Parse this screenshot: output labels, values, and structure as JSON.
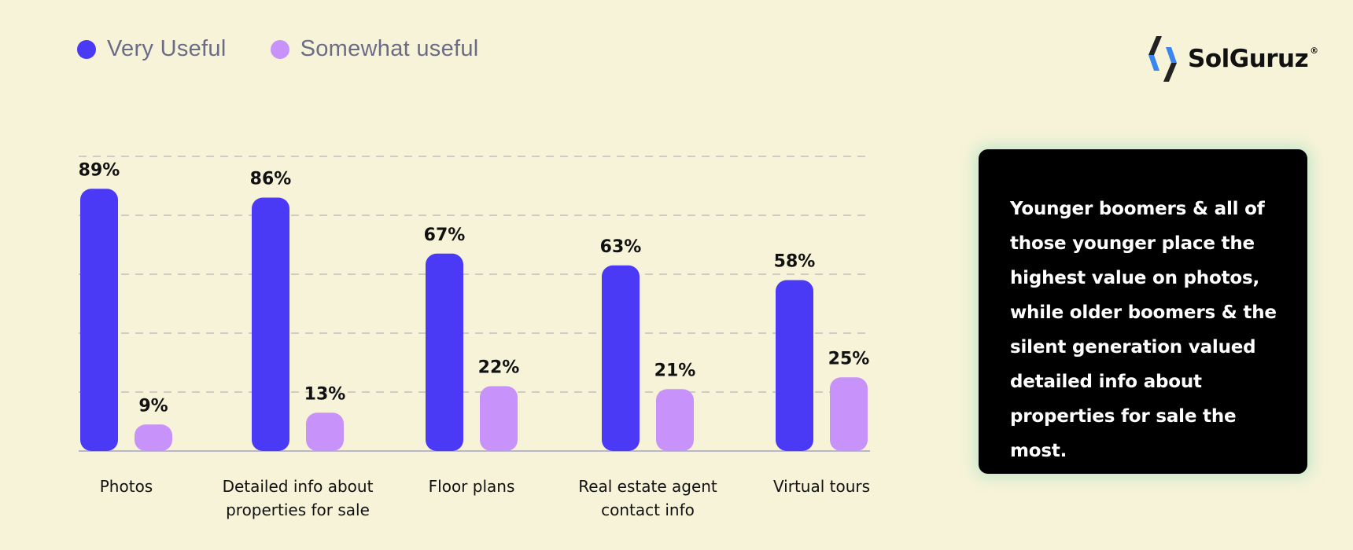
{
  "legend": [
    {
      "label": "Very Useful",
      "color": "#4b3af5"
    },
    {
      "label": "Somewhat useful",
      "color": "#c892fb"
    }
  ],
  "logo": {
    "name": "SolGuruz",
    "registered": "®"
  },
  "callout": {
    "text": "Younger boomers & all of those younger place the highest value on photos, while older boomers & the silent generation valued detailed info about properties for sale the most."
  },
  "chart_data": {
    "type": "bar",
    "categories": [
      [
        "Photos"
      ],
      [
        "Detailed info about",
        "properties for sale"
      ],
      [
        "Floor plans"
      ],
      [
        "Real estate agent",
        "contact info"
      ],
      [
        "Virtual tours"
      ]
    ],
    "series": [
      {
        "name": "Very Useful",
        "color": "#4b3af5",
        "values": [
          89,
          86,
          67,
          63,
          58
        ],
        "labels": [
          "89%",
          "86%",
          "67%",
          "63%",
          "58%"
        ]
      },
      {
        "name": "Somewhat useful",
        "color": "#c892fb",
        "values": [
          9,
          13,
          22,
          21,
          25
        ],
        "labels": [
          "9%",
          "13%",
          "22%",
          "21%",
          "25%"
        ]
      }
    ],
    "ylim": [
      0,
      100
    ],
    "grid": true,
    "legend": "top-left",
    "title": "",
    "xlabel": "",
    "ylabel": ""
  }
}
